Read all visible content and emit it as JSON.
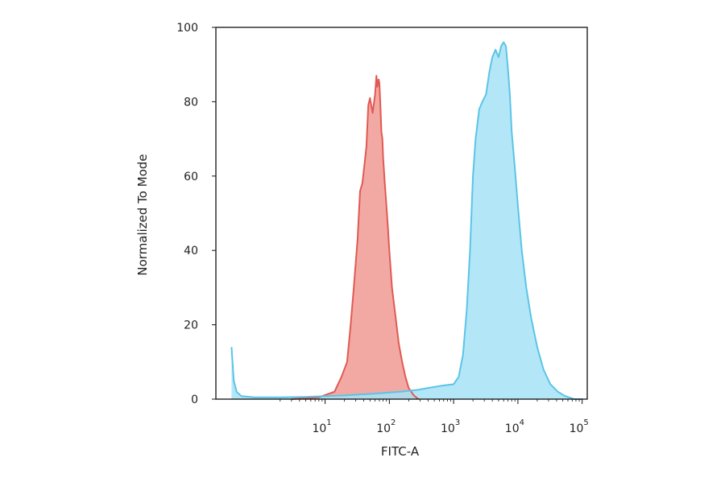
{
  "chart_data": {
    "type": "area",
    "title": "",
    "xlabel": "FITC-A",
    "ylabel": "Normalized To Mode",
    "x_scale": "log",
    "xlim": [
      0.2,
      120000
    ],
    "ylim": [
      0,
      100
    ],
    "y_ticks": [
      0,
      20,
      40,
      60,
      80,
      100
    ],
    "x_ticks": [
      {
        "value": 10,
        "base": "10",
        "exp": "1"
      },
      {
        "value": 100,
        "base": "10",
        "exp": "2"
      },
      {
        "value": 1000,
        "base": "10",
        "exp": "3"
      },
      {
        "value": 10000,
        "base": "10",
        "exp": "4"
      },
      {
        "value": 100000,
        "base": "10",
        "exp": "5"
      }
    ],
    "grid": false,
    "legend": "none",
    "series": [
      {
        "color": "#e05a52",
        "fill": "#f09a94",
        "x": [
          3,
          8,
          14,
          18,
          22,
          25,
          28,
          32,
          35,
          38,
          41,
          44,
          47,
          50,
          55,
          60,
          63,
          65,
          68,
          70,
          73,
          75,
          78,
          80,
          85,
          90,
          95,
          100,
          110,
          125,
          140,
          158,
          178,
          200,
          240,
          285
        ],
        "y": [
          0,
          0.5,
          2,
          6,
          10,
          20,
          30,
          43,
          56,
          58,
          63,
          68,
          79,
          81,
          77,
          82,
          87,
          84,
          86,
          85,
          78,
          72,
          70,
          65,
          58,
          52,
          46,
          40,
          30,
          22,
          15,
          10,
          6,
          3,
          1,
          0
        ]
      },
      {
        "color": "#5bc4e6",
        "fill": "#a6e3f7",
        "x": [
          0.35,
          0.38,
          0.42,
          0.5,
          0.8,
          2,
          5,
          20,
          60,
          150,
          280,
          400,
          600,
          800,
          1000,
          1200,
          1400,
          1600,
          1800,
          2000,
          2200,
          2500,
          2800,
          3200,
          3600,
          4000,
          4500,
          5000,
          5500,
          6000,
          6500,
          7000,
          7500,
          8000,
          9000,
          10000,
          11500,
          13500,
          16000,
          20000,
          25000,
          32000,
          42000,
          52000,
          62000,
          75000,
          100000
        ],
        "y": [
          14,
          5,
          2,
          0.8,
          0.5,
          0.5,
          0.6,
          1,
          1.5,
          2,
          2.5,
          3,
          3.5,
          3.8,
          4,
          6,
          12,
          24,
          40,
          60,
          70,
          78,
          80,
          82,
          88,
          92,
          94,
          92,
          95,
          96,
          95,
          89,
          82,
          72,
          62,
          52,
          40,
          30,
          22,
          14,
          8,
          4,
          2,
          1,
          0.5,
          0,
          0
        ]
      }
    ]
  }
}
